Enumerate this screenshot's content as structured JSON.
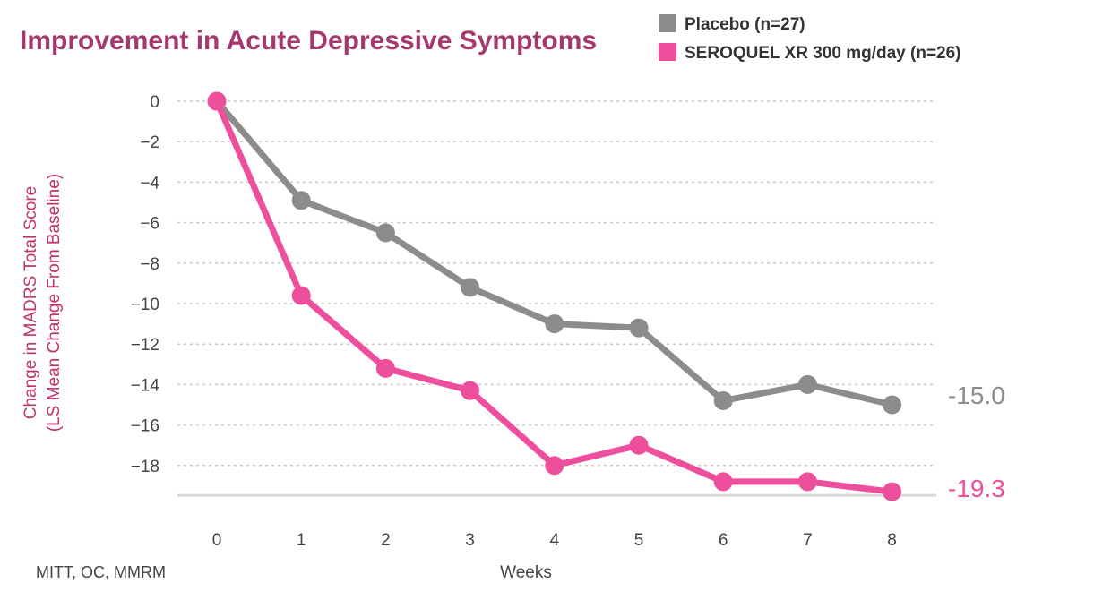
{
  "chart_data": {
    "type": "line",
    "title": "Improvement in Acute Depressive Symptoms",
    "xlabel": "Weeks",
    "ylabel_line1": "Change in MADRS Total Score",
    "ylabel_line2": "(LS Mean Change From Baseline)",
    "x": [
      0,
      1,
      2,
      3,
      4,
      5,
      6,
      7,
      8
    ],
    "xlim": [
      0,
      8
    ],
    "ylim": [
      -19.3,
      0
    ],
    "yticks": [
      0,
      -2,
      -4,
      -6,
      -8,
      -10,
      -12,
      -14,
      -16,
      -18
    ],
    "grid": true,
    "legend_position": "top-right",
    "series": [
      {
        "name": "Placebo (n=27)",
        "color": "#8c8c8c",
        "values": [
          0,
          -4.9,
          -6.5,
          -9.2,
          -11.0,
          -11.2,
          -14.8,
          -14.0,
          -15.0
        ],
        "end_label": "-15.0"
      },
      {
        "name": "SEROQUEL XR 300 mg/day (n=26)",
        "color": "#ee4f9c",
        "values": [
          0,
          -9.6,
          -13.2,
          -14.3,
          -18.0,
          -17.0,
          -18.8,
          -18.8,
          -19.3
        ],
        "end_label": "-19.3"
      }
    ],
    "footnote": "MITT, OC, MMRM"
  },
  "colors": {
    "title": "#a3396f",
    "axis_label": "#c0336e",
    "grid": "#c8c8c8",
    "baseline": "#d8d8d8"
  }
}
